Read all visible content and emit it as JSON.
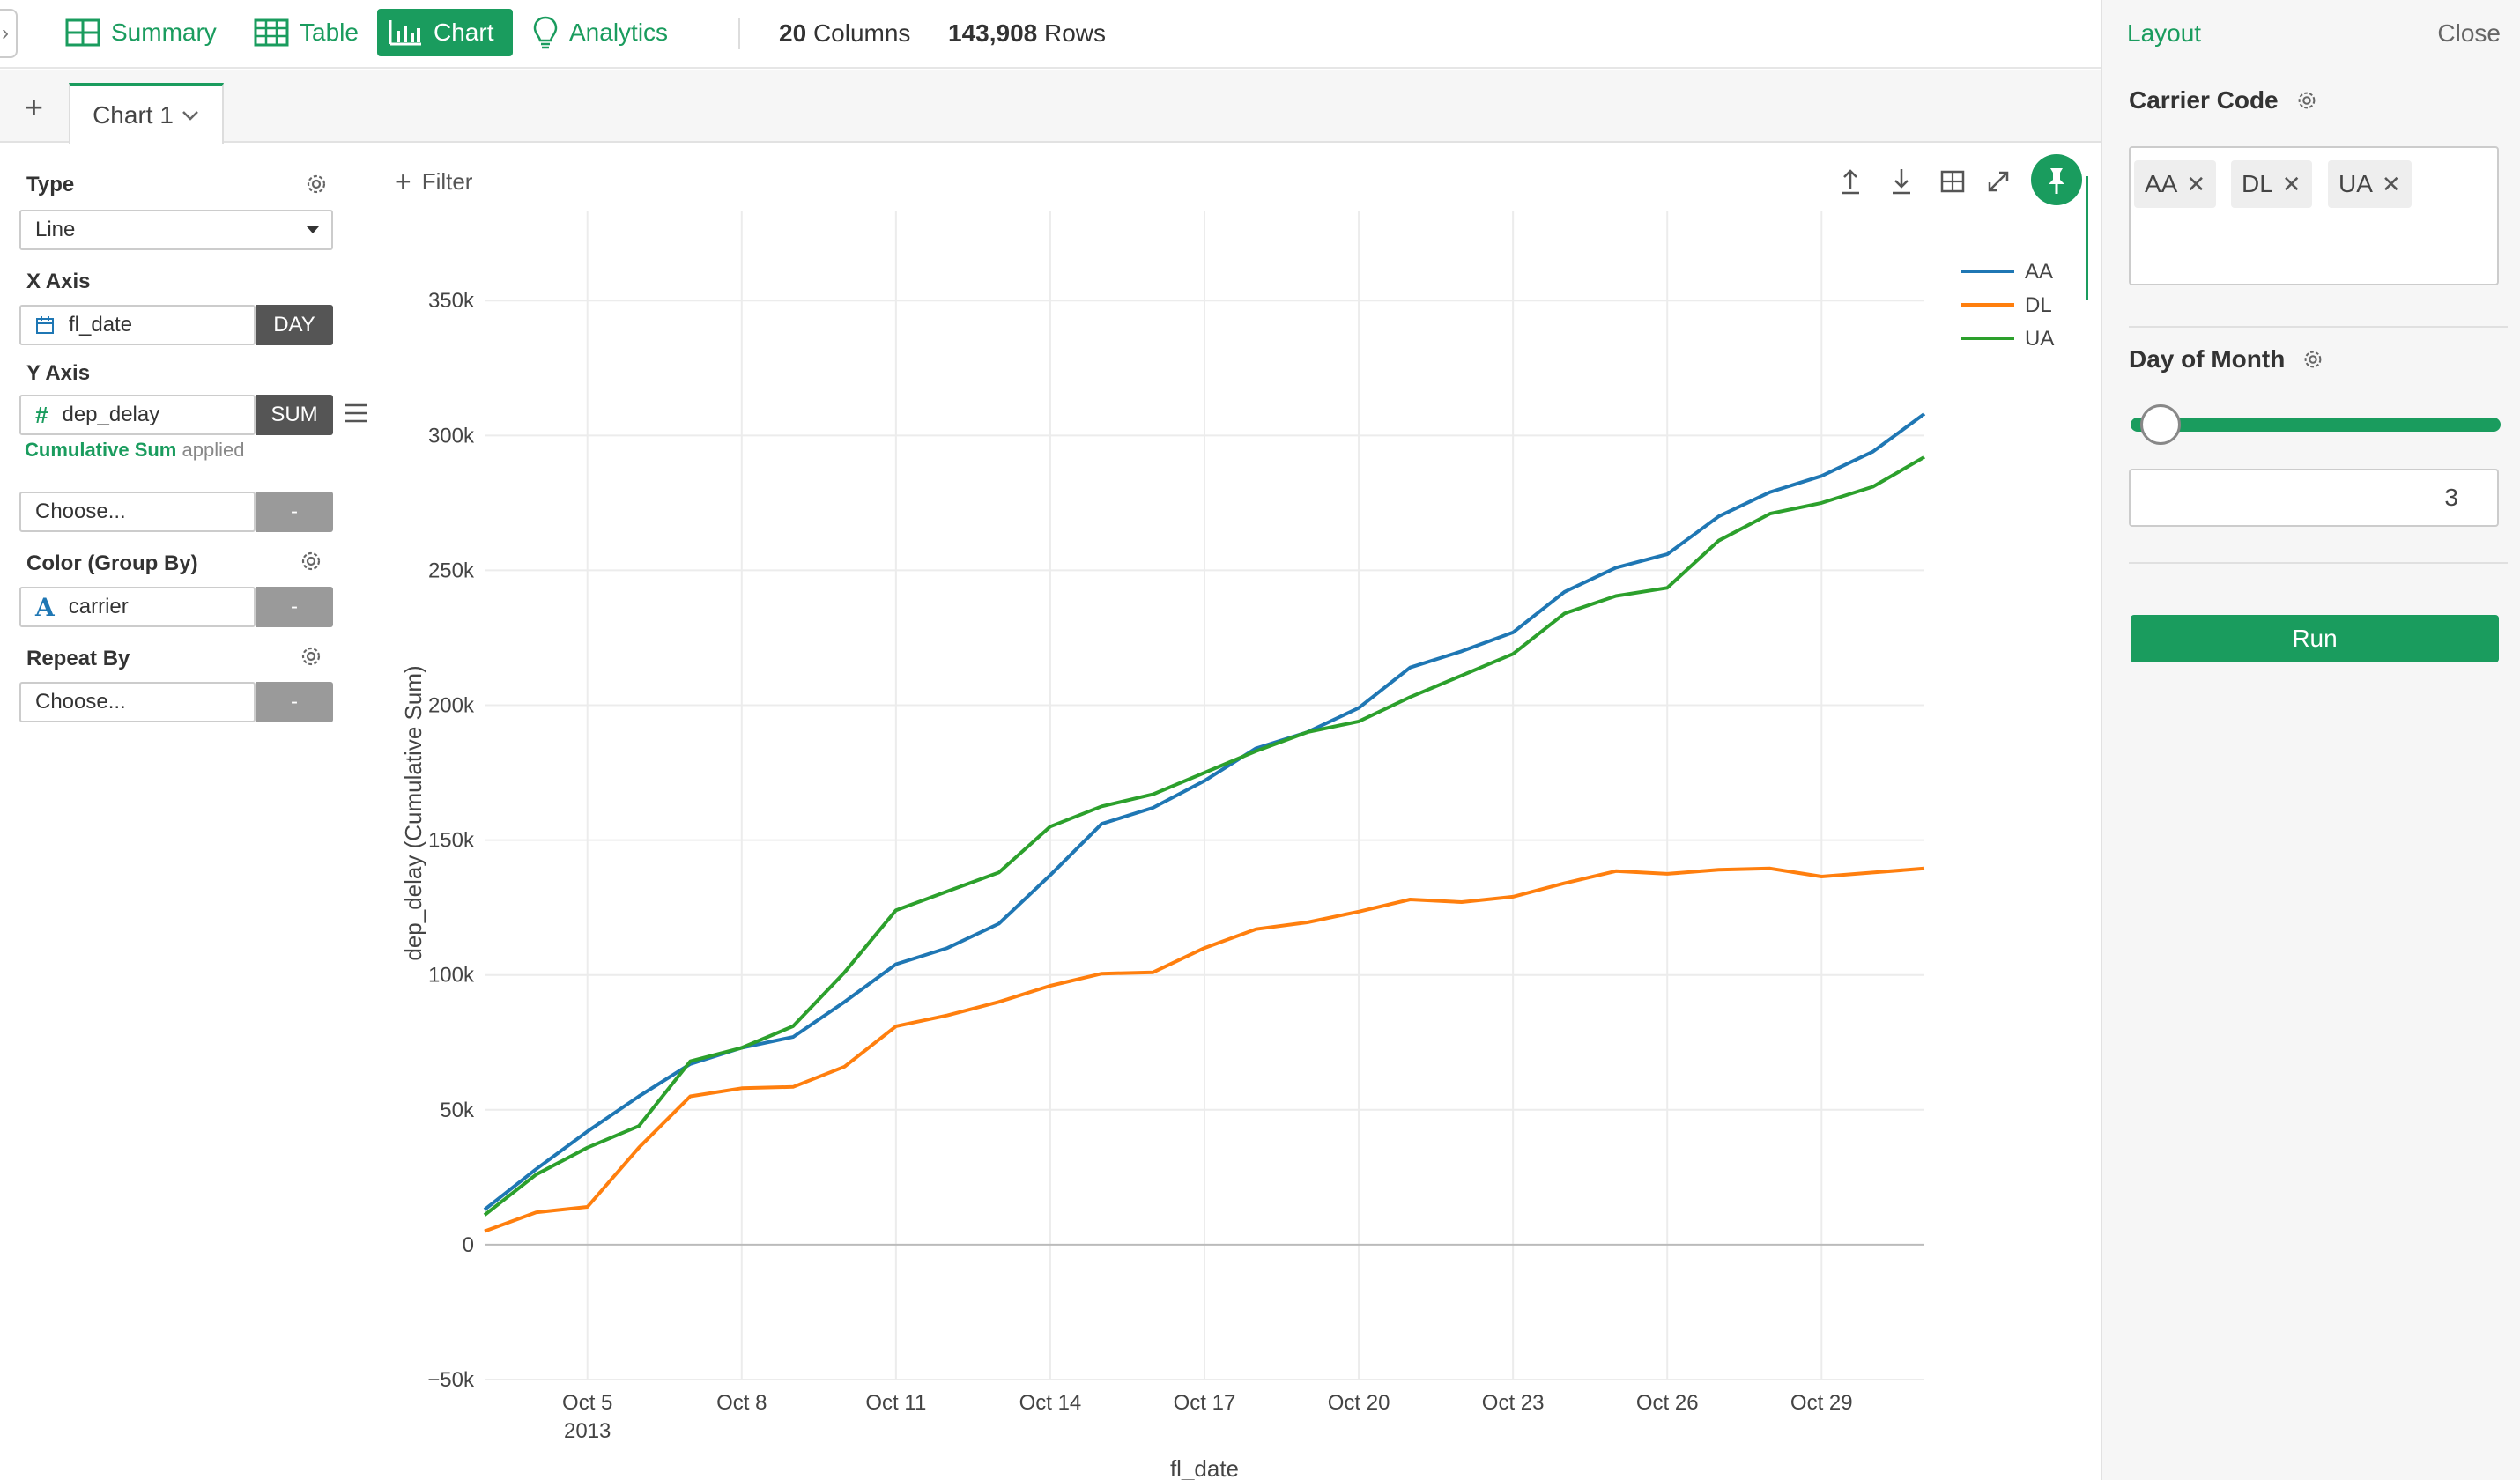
{
  "nav": {
    "summary": "Summary",
    "table": "Table",
    "chart": "Chart",
    "analytics": "Analytics",
    "columns_count": "20",
    "columns_label": "Columns",
    "rows_count": "143,908",
    "rows_label": "Rows"
  },
  "tabs": {
    "add": "+",
    "chart_tab": "Chart 1"
  },
  "config": {
    "type_label": "Type",
    "type_value": "Line",
    "x_axis_label": "X Axis",
    "x_axis_field": "fl_date",
    "x_axis_agg": "DAY",
    "y_axis_label": "Y Axis",
    "y_axis_field": "dep_delay",
    "y_axis_agg": "SUM",
    "y_calc_name": "Cumulative Sum",
    "y_calc_suffix": "applied",
    "extra_choose": "Choose...",
    "extra_dash": "-",
    "color_label": "Color (Group By)",
    "color_field": "carrier",
    "color_dash": "-",
    "repeat_label": "Repeat By",
    "repeat_choose": "Choose...",
    "repeat_dash": "-"
  },
  "toolbar": {
    "filter_label": "Filter"
  },
  "layout_panel": {
    "title": "Layout",
    "close": "Close",
    "carrier_label": "Carrier Code",
    "carrier_chips": [
      "AA",
      "DL",
      "UA"
    ],
    "day_label": "Day of Month",
    "day_value": "3",
    "day_slider_fraction": 0.04,
    "run_label": "Run"
  },
  "colors": {
    "accent": "#1a9c5e",
    "AA": "#1f77b4",
    "DL": "#ff7f0e",
    "UA": "#2ca02c"
  },
  "chart_data": {
    "type": "line",
    "xlabel": "fl_date",
    "ylabel": "dep_delay (Cumulative Sum)",
    "x": [
      "2013-10-03",
      "2013-10-04",
      "2013-10-05",
      "2013-10-06",
      "2013-10-07",
      "2013-10-08",
      "2013-10-09",
      "2013-10-10",
      "2013-10-11",
      "2013-10-12",
      "2013-10-13",
      "2013-10-14",
      "2013-10-15",
      "2013-10-16",
      "2013-10-17",
      "2013-10-18",
      "2013-10-19",
      "2013-10-20",
      "2013-10-21",
      "2013-10-22",
      "2013-10-23",
      "2013-10-24",
      "2013-10-25",
      "2013-10-26",
      "2013-10-27",
      "2013-10-28",
      "2013-10-29",
      "2013-10-30",
      "2013-10-31"
    ],
    "xlim": [
      "2013-10-03",
      "2013-10-31"
    ],
    "x_ticks": [
      "Oct 5",
      "Oct 8",
      "Oct 11",
      "Oct 14",
      "Oct 17",
      "Oct 20",
      "Oct 23",
      "Oct 26",
      "Oct 29"
    ],
    "x_tick_dates": [
      "2013-10-05",
      "2013-10-08",
      "2013-10-11",
      "2013-10-14",
      "2013-10-17",
      "2013-10-20",
      "2013-10-23",
      "2013-10-26",
      "2013-10-29"
    ],
    "x_year_label": "2013",
    "ylim": [
      -50000,
      370000
    ],
    "y_ticks": [
      -50000,
      0,
      50000,
      100000,
      150000,
      200000,
      250000,
      300000,
      350000
    ],
    "y_tick_labels": [
      "−50k",
      "0",
      "50k",
      "100k",
      "150k",
      "200k",
      "250k",
      "300k",
      "350k"
    ],
    "grid": true,
    "legend_position": "top-right",
    "series": [
      {
        "name": "AA",
        "values": [
          13000,
          28000,
          42000,
          55000,
          67000,
          73000,
          77000,
          90000,
          104000,
          110000,
          119000,
          137000,
          156000,
          162000,
          172000,
          184000,
          190000,
          199000,
          214000,
          220000,
          227000,
          242000,
          251000,
          256000,
          270000,
          279000,
          285000,
          294000,
          308000
        ]
      },
      {
        "name": "DL",
        "values": [
          5000,
          12000,
          14000,
          36000,
          55000,
          58000,
          58500,
          66000,
          81000,
          85000,
          90000,
          96000,
          100500,
          101000,
          110000,
          117000,
          119500,
          123500,
          128000,
          127000,
          129000,
          134000,
          138500,
          137500,
          139000,
          139500,
          136500,
          138000,
          139500
        ]
      },
      {
        "name": "UA",
        "values": [
          11000,
          26000,
          36000,
          44000,
          68000,
          73000,
          81000,
          101000,
          124000,
          131000,
          138000,
          155000,
          162500,
          167000,
          175000,
          183000,
          190000,
          194000,
          203000,
          211000,
          219000,
          234000,
          240500,
          243500,
          261000,
          271000,
          275000,
          281000,
          292000
        ]
      }
    ]
  }
}
